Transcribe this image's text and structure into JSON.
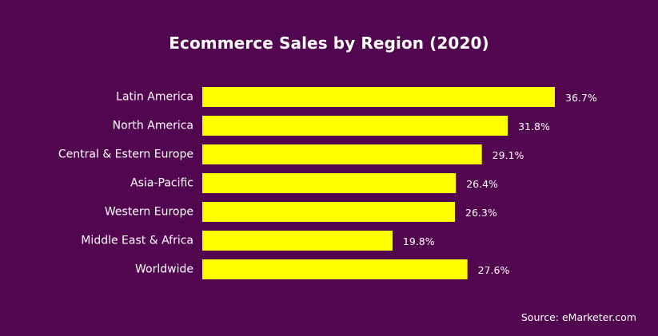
{
  "colors": {
    "background": "#530650",
    "bar": "#FFFF00",
    "text": "#FFFFFF"
  },
  "chart_data": {
    "type": "bar",
    "orientation": "horizontal",
    "title": "Ecommerce Sales by Region (2020)",
    "xlabel": "",
    "ylabel": "",
    "categories": [
      "Latin America",
      "North America",
      "Central & Estern Europe",
      "Asia-Pacific",
      "Western Europe",
      "Middle East & Africa",
      "Worldwide"
    ],
    "values": [
      36.7,
      31.8,
      29.1,
      26.4,
      26.3,
      19.8,
      27.6
    ],
    "value_labels": [
      "36.7%",
      "31.8%",
      "29.1%",
      "26.4%",
      "26.3%",
      "19.8%",
      "27.6%"
    ],
    "xlim": [
      0,
      36.7
    ],
    "grid": false,
    "legend": "none",
    "source": "Source: eMarketer.com"
  }
}
